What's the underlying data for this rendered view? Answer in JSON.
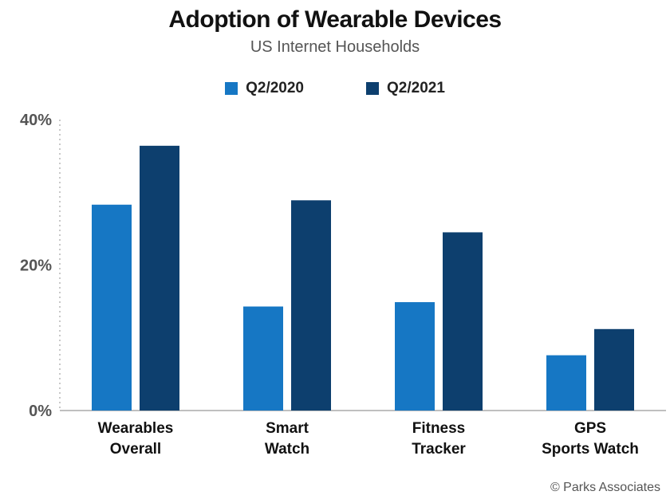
{
  "chart_data": {
    "type": "bar",
    "title": "Adoption of Wearable Devices",
    "subtitle": "US Internet Households",
    "categories": [
      [
        "Wearables",
        "Overall"
      ],
      [
        "Smart",
        "Watch"
      ],
      [
        "Fitness",
        "Tracker"
      ],
      [
        "GPS",
        "Sports Watch"
      ]
    ],
    "series": [
      {
        "name": "Q2/2020",
        "color": "#1677c4",
        "values": [
          28.3,
          14.3,
          14.9,
          7.6
        ]
      },
      {
        "name": "Q2/2021",
        "color": "#0d3f6e",
        "values": [
          36.4,
          28.9,
          24.5,
          11.2
        ]
      }
    ],
    "yticks": [
      {
        "value": 0,
        "label": "0%"
      },
      {
        "value": 20,
        "label": "20%"
      },
      {
        "value": 40,
        "label": "40%"
      }
    ],
    "ylim": [
      0,
      40
    ],
    "grid": false,
    "legend_position": "top"
  },
  "credit": "© Parks Associates"
}
